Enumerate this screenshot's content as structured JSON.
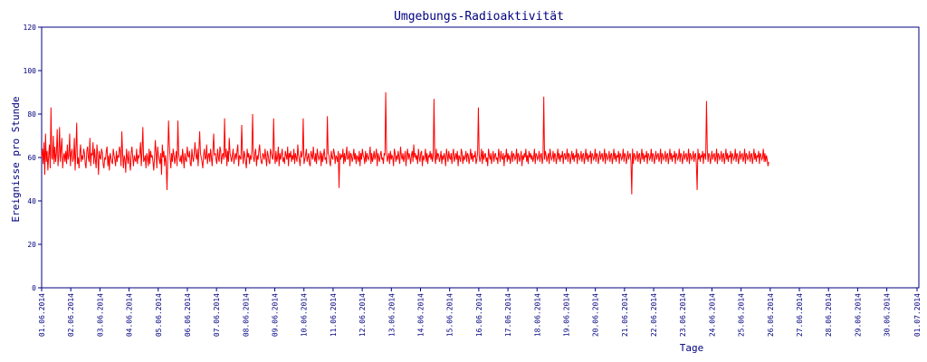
{
  "chart_data": {
    "type": "line",
    "title": "Umgebungs-Radioaktivität",
    "xlabel": "Tage",
    "ylabel": "Ereignisse pro Stunde",
    "ylim": [
      0,
      120
    ],
    "yticks": [
      0,
      20,
      40,
      60,
      80,
      100,
      120
    ],
    "x_start_label": "01.06.2014",
    "x_tick_labels": [
      "01.06.2014",
      "02.06.2014",
      "03.06.2014",
      "04.06.2014",
      "05.06.2014",
      "06.06.2014",
      "07.06.2014",
      "08.06.2014",
      "09.06.2014",
      "10.06.2014",
      "11.06.2014",
      "12.06.2014",
      "13.06.2014",
      "14.06.2014",
      "15.06.2014",
      "16.06.2014",
      "17.06.2014",
      "18.06.2014",
      "19.06.2014",
      "20.06.2014",
      "21.06.2014",
      "22.06.2014",
      "23.06.2014",
      "24.06.2014",
      "25.06.2014",
      "26.06.2014",
      "27.06.2014",
      "28.06.2014",
      "29.06.2014",
      "30.06.2014",
      "01.07.2014"
    ],
    "grid": false,
    "colors": {
      "series": "#ff0000",
      "axis": "#000080",
      "background": "#ffffff"
    },
    "series": [
      {
        "values": [
          60,
          64,
          57,
          67,
          52,
          71,
          58,
          63,
          54,
          61,
          66,
          55,
          83,
          60,
          59,
          70,
          57,
          65,
          58,
          62,
          73,
          56,
          61,
          74,
          58,
          64,
          69,
          55,
          60,
          62,
          58,
          63,
          57,
          66,
          59,
          61,
          71,
          56,
          62,
          64,
          58,
          60,
          69,
          54,
          63,
          76,
          57,
          60,
          55,
          62,
          66,
          58,
          61,
          59,
          64,
          62,
          57,
          55,
          63,
          65,
          60,
          58,
          69,
          56,
          62,
          61,
          67,
          57,
          64,
          59,
          55,
          66,
          61,
          52,
          63,
          60,
          59,
          64,
          62,
          57,
          55,
          60,
          59,
          63,
          65,
          56,
          61,
          54,
          62,
          60,
          58,
          57,
          64,
          61,
          59,
          56,
          63,
          58,
          61,
          60,
          65,
          63,
          56,
          72,
          62,
          55,
          61,
          59,
          53,
          64,
          60,
          57,
          63,
          58,
          54,
          62,
          65,
          60,
          56,
          61,
          59,
          58,
          64,
          57,
          61,
          60,
          62,
          67,
          56,
          63,
          74,
          58,
          59,
          61,
          55,
          62,
          60,
          56,
          64,
          57,
          63,
          60,
          61,
          58,
          54,
          60,
          68,
          62,
          55,
          65,
          61,
          59,
          57,
          62,
          52,
          66,
          60,
          63,
          56,
          61,
          58,
          45,
          59,
          77,
          66,
          60,
          55,
          62,
          58,
          64,
          61,
          57,
          60,
          63,
          56,
          77,
          62,
          59,
          58,
          61,
          57,
          64,
          60,
          55,
          62,
          59,
          58,
          65,
          61,
          60,
          63,
          57,
          56,
          64,
          60,
          58,
          62,
          67,
          61,
          59,
          64,
          56,
          63,
          72,
          62,
          60,
          58,
          55,
          61,
          64,
          59,
          60,
          66,
          57,
          61,
          62,
          58,
          64,
          60,
          56,
          63,
          71,
          61,
          62,
          59,
          57,
          64,
          60,
          58,
          65,
          63,
          57,
          61,
          62,
          59,
          78,
          60,
          64,
          56,
          63,
          58,
          69,
          62,
          60,
          58,
          61,
          64,
          57,
          60,
          62,
          59,
          63,
          66,
          56,
          61,
          60,
          59,
          75,
          62,
          57,
          63,
          61,
          58,
          55,
          64,
          60,
          62,
          57,
          61,
          59,
          63,
          80,
          60,
          58,
          62,
          64,
          56,
          61,
          59,
          63,
          66,
          60,
          58,
          57,
          62,
          61,
          59,
          64,
          60,
          56,
          63,
          61,
          58,
          57,
          64,
          62,
          60,
          59,
          78,
          61,
          57,
          63,
          58,
          60,
          65,
          56,
          62,
          59,
          61,
          64,
          58,
          60,
          57,
          63,
          61,
          59,
          65,
          56,
          62,
          60,
          63,
          58,
          61,
          59,
          64,
          57,
          62,
          60,
          58,
          66,
          61,
          59,
          56,
          63,
          60,
          62,
          78,
          57,
          59,
          61,
          64,
          58,
          60,
          62,
          57,
          56,
          63,
          61,
          59,
          65,
          60,
          58,
          62,
          57,
          64,
          61,
          59,
          60,
          63,
          56,
          62,
          58,
          61,
          64,
          59,
          60,
          57,
          79,
          62,
          61,
          58,
          56,
          63,
          60,
          59,
          64,
          62,
          57,
          61,
          60,
          58,
          63,
          46,
          62,
          59,
          61,
          60,
          64,
          57,
          62,
          58,
          61,
          65,
          59,
          60,
          63,
          56,
          62,
          61,
          58,
          60,
          64,
          59,
          62,
          57,
          61,
          60,
          58,
          63,
          56,
          62,
          59,
          64,
          61,
          60,
          57,
          63,
          58,
          62,
          60,
          59,
          61,
          65,
          57,
          62,
          58,
          60,
          63,
          59,
          61,
          64,
          56,
          62,
          60,
          58,
          61,
          63,
          59,
          60,
          57,
          62,
          61,
          90,
          64,
          58,
          60,
          62,
          57,
          63,
          59,
          61,
          60,
          56,
          64,
          62,
          58,
          61,
          59,
          63,
          60,
          57,
          65,
          61,
          59,
          62,
          58,
          60,
          63,
          56,
          61,
          64,
          59,
          62,
          60,
          57,
          61,
          63,
          58,
          66,
          60,
          62,
          59,
          61,
          57,
          64,
          60,
          58,
          62,
          63,
          56,
          61,
          59,
          60,
          64,
          58,
          62,
          57,
          61,
          60,
          63,
          59,
          62,
          58,
          61,
          87,
          60,
          57,
          64,
          59,
          62,
          61,
          58,
          60,
          63,
          57,
          61,
          59,
          62,
          60,
          56,
          64,
          61,
          58,
          63,
          60,
          59,
          62,
          57,
          61,
          64,
          58,
          60,
          62,
          59,
          63,
          56,
          61,
          60,
          58,
          64,
          62,
          57,
          61,
          59,
          60,
          63,
          58,
          62,
          61,
          57,
          60,
          64,
          59,
          62,
          58,
          61,
          60,
          63,
          57,
          59,
          62,
          83,
          61,
          58,
          60,
          64,
          57,
          63,
          59,
          61,
          62,
          58,
          60,
          56,
          64,
          61,
          59,
          62,
          57,
          60,
          63,
          58,
          61,
          62,
          59,
          60,
          57,
          64,
          61,
          58,
          63,
          60,
          59,
          62,
          56,
          61,
          60,
          64,
          58,
          62,
          59,
          61,
          57,
          60,
          63,
          58,
          62,
          61,
          59,
          60,
          64,
          57,
          62,
          61,
          58,
          60,
          63,
          56,
          61,
          59,
          62,
          60,
          64,
          58,
          61,
          57,
          63,
          60,
          62,
          59,
          61,
          58,
          60,
          64,
          57,
          62,
          61,
          59,
          60,
          63,
          58,
          61,
          62,
          57,
          60,
          88,
          59,
          63,
          61,
          58,
          60,
          62,
          57,
          64,
          61,
          59,
          60,
          63,
          58,
          62,
          61,
          57,
          60,
          64,
          59,
          62,
          58,
          61,
          60,
          63,
          57,
          61,
          62,
          59,
          60,
          64,
          58,
          62,
          61,
          57,
          60,
          63,
          59,
          62,
          58,
          61,
          60,
          64,
          57,
          62,
          61,
          59,
          60,
          63,
          58,
          61,
          62,
          57,
          60,
          64,
          59,
          62,
          58,
          61,
          60,
          63,
          57,
          62,
          61,
          59,
          60,
          64,
          58,
          62,
          61,
          57,
          60,
          63,
          59,
          61,
          62,
          58,
          60,
          64,
          57,
          62,
          61,
          59,
          60,
          63,
          58,
          61,
          62,
          57,
          60,
          64,
          59,
          62,
          58,
          61,
          60,
          63,
          57,
          62,
          61,
          59,
          60,
          64,
          58,
          62,
          61,
          57,
          60,
          63,
          59,
          61,
          62,
          58,
          43,
          64,
          57,
          62,
          61,
          59,
          60,
          63,
          58,
          61,
          62,
          57,
          60,
          64,
          59,
          62,
          58,
          61,
          60,
          63,
          57,
          62,
          61,
          59,
          60,
          64,
          58,
          62,
          61,
          57,
          60,
          63,
          59,
          61,
          62,
          58,
          60,
          64,
          57,
          62,
          61,
          59,
          60,
          63,
          58,
          61,
          62,
          57,
          60,
          64,
          59,
          62,
          58,
          61,
          60,
          63,
          57,
          62,
          61,
          59,
          60,
          64,
          58,
          62,
          61,
          57,
          60,
          63,
          59,
          61,
          62,
          58,
          60,
          64,
          57,
          62,
          61,
          59,
          60,
          63,
          58,
          61,
          62,
          57,
          45,
          64,
          59,
          62,
          58,
          61,
          60,
          63,
          57,
          62,
          61,
          59,
          86,
          64,
          58,
          62,
          61,
          57,
          60,
          63,
          59,
          61,
          62,
          58,
          60,
          64,
          57,
          62,
          61,
          59,
          60,
          63,
          58,
          61,
          62,
          57,
          60,
          64,
          59,
          62,
          58,
          61,
          60,
          63,
          57,
          62,
          61,
          59,
          60,
          64,
          58,
          62,
          61,
          57,
          60,
          63,
          59,
          61,
          62,
          58,
          60,
          64,
          57,
          62,
          61,
          59,
          60,
          63,
          58,
          61,
          62,
          57,
          60,
          64,
          59,
          62,
          58,
          61,
          60,
          63,
          57,
          62,
          61,
          59,
          60,
          64,
          58,
          62,
          58,
          61,
          59,
          56,
          58
        ]
      }
    ]
  }
}
